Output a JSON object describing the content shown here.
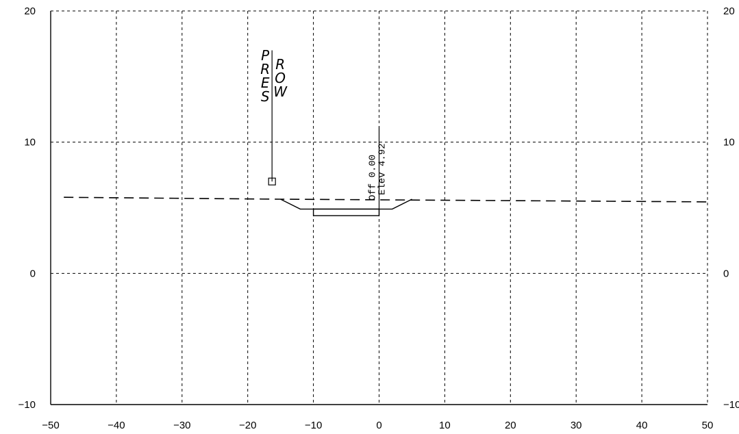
{
  "chart_data": {
    "type": "cross-section",
    "x_ticks": [
      -50,
      -40,
      -30,
      -20,
      -10,
      0,
      10,
      20,
      30,
      40,
      50
    ],
    "y_ticks": [
      -10,
      0,
      10,
      20
    ],
    "xlim": [
      -50,
      50
    ],
    "ylim": [
      -10,
      20
    ],
    "grid": "dashed",
    "ground_line": {
      "style": "dashed",
      "points": [
        [
          -48,
          5.8
        ],
        [
          -15,
          5.65
        ],
        [
          50,
          5.45
        ]
      ]
    },
    "road_template": {
      "top": [
        [
          -15,
          5.65
        ],
        [
          -12,
          4.9
        ],
        [
          2,
          4.9
        ],
        [
          5,
          5.65
        ]
      ],
      "pavement_box": {
        "x1": -10,
        "x2": 0,
        "y1": 4.4,
        "y2": 4.9
      }
    },
    "row_marker": {
      "x": -16.3,
      "y_top": 17,
      "y_marker": 7,
      "label_left": "PRES",
      "label_right": "ROW"
    },
    "centerline": {
      "x": 0,
      "y_top": 11.2,
      "offset_label": "Off 0.00",
      "elevation_label": "Elev 4.92"
    }
  }
}
